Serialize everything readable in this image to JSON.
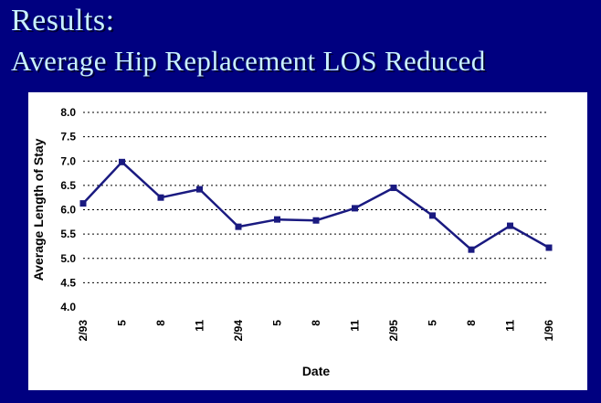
{
  "slide": {
    "title_line1": "Results:",
    "title_line2": "Average Hip Replacement LOS Reduced",
    "background_color": "#000080",
    "title_color": "#c8f0ff"
  },
  "chart_data": {
    "type": "line",
    "title": "",
    "xlabel": "Date",
    "ylabel": "Average Length of Stay",
    "categories": [
      "2/93",
      "5",
      "8",
      "11",
      "2/94",
      "5",
      "8",
      "11",
      "2/95",
      "5",
      "8",
      "11",
      "1/96"
    ],
    "series": [
      {
        "values": [
          6.13,
          6.98,
          6.25,
          6.42,
          5.65,
          5.8,
          5.78,
          6.03,
          6.45,
          5.88,
          5.18,
          5.67,
          5.22
        ],
        "color": "#1a1a80"
      }
    ],
    "ylim": [
      4.0,
      8.0
    ],
    "yticks": [
      "4.0",
      "4.5",
      "5.0",
      "5.5",
      "6.0",
      "6.5",
      "7.0",
      "7.5",
      "8.0"
    ],
    "grid": true,
    "legend": "none"
  }
}
